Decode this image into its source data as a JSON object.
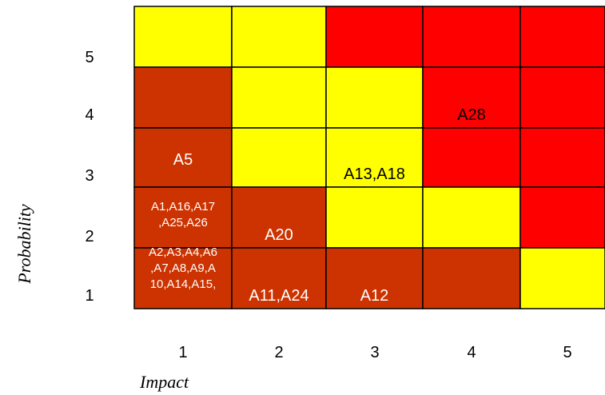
{
  "chart_data": {
    "type": "heatmap",
    "title": "",
    "xlabel": "Impact",
    "ylabel": "Probability",
    "x_categories": [
      "1",
      "2",
      "3",
      "4",
      "5"
    ],
    "y_categories": [
      "5",
      "4",
      "3",
      "2",
      "1"
    ],
    "colors": {
      "red": "#ff0000",
      "yellow": "#ffff00",
      "brown": "#cc3300",
      "grid": "#000000",
      "label_light": "#ffffff",
      "label_dark": "#000000"
    },
    "grid": [
      [
        "yellow",
        "yellow",
        "red",
        "red",
        "red"
      ],
      [
        "brown",
        "yellow",
        "yellow",
        "red",
        "red"
      ],
      [
        "brown",
        "yellow",
        "yellow",
        "red",
        "red"
      ],
      [
        "brown",
        "brown",
        "yellow",
        "yellow",
        "red"
      ],
      [
        "brown",
        "brown",
        "brown",
        "brown",
        "yellow"
      ]
    ],
    "cell_labels": [
      [
        "",
        "",
        "",
        "",
        ""
      ],
      [
        "",
        "",
        "",
        "A28",
        ""
      ],
      [
        "A5",
        "",
        "A13,A18",
        "",
        ""
      ],
      [
        "A1,A16,A17\n,A25,A26",
        "A20",
        "",
        "",
        ""
      ],
      [
        "A2,A3,A4,A6\n,A7,A8,A9,A\n10,A14,A15,",
        "A11,A24",
        "A12",
        "",
        ""
      ]
    ]
  }
}
